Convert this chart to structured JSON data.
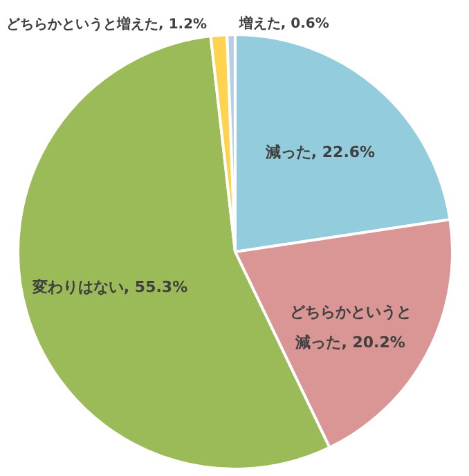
{
  "chart_data": {
    "type": "pie",
    "categories": [
      "減った",
      "どちらかというと減った",
      "変わりはない",
      "どちらかというと増えた",
      "増えた"
    ],
    "values": [
      22.6,
      20.2,
      55.3,
      1.2,
      0.6
    ],
    "value_labels": [
      "22.6%",
      "20.2%",
      "55.3%",
      "1.2%",
      "0.6%"
    ],
    "colors": [
      "#93cddd",
      "#d99694",
      "#9bbb59",
      "#ffd34d",
      "#b9cde5"
    ]
  }
}
